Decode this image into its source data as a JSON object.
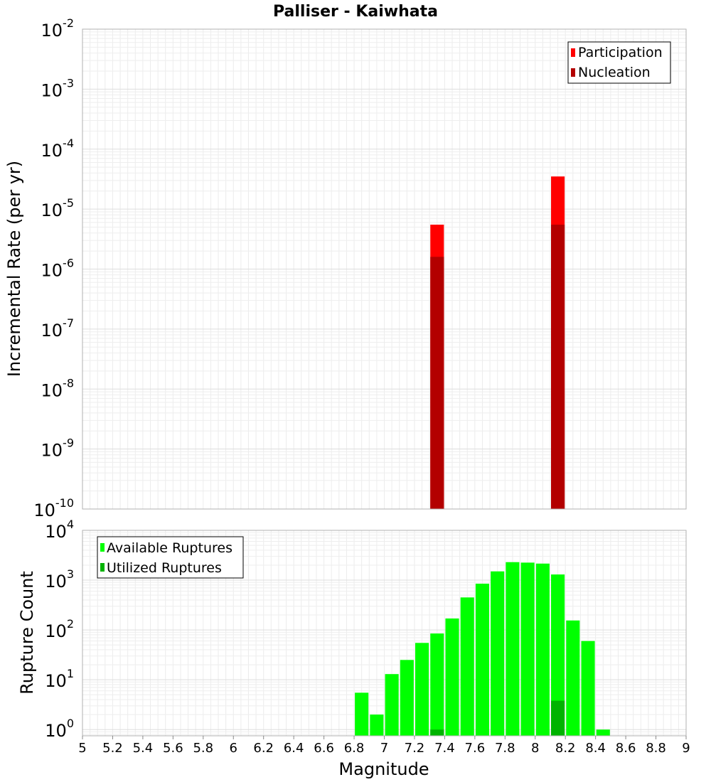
{
  "chart_data": [
    {
      "type": "bar",
      "title": "Palliser - Kaiwhata",
      "xlabel": "",
      "ylabel": "Incremental Rate (per yr)",
      "xlim": [
        5,
        9
      ],
      "ylim": [
        1e-10,
        0.01
      ],
      "yscale": "log",
      "grid": true,
      "legend_position": "top-right",
      "y_ticks": [
        {
          "base": "10",
          "exp": "-10",
          "value": 1e-10
        },
        {
          "base": "10",
          "exp": "-9",
          "value": 1e-09
        },
        {
          "base": "10",
          "exp": "-8",
          "value": 1e-08
        },
        {
          "base": "10",
          "exp": "-7",
          "value": 1e-07
        },
        {
          "base": "10",
          "exp": "-6",
          "value": 1e-06
        },
        {
          "base": "10",
          "exp": "-5",
          "value": 1e-05
        },
        {
          "base": "10",
          "exp": "-4",
          "value": 0.0001
        },
        {
          "base": "10",
          "exp": "-3",
          "value": 0.001
        },
        {
          "base": "10",
          "exp": "-2",
          "value": 0.01
        }
      ],
      "series": [
        {
          "name": "Participation",
          "color": "#ff0000",
          "x": [
            7.35,
            8.15
          ],
          "values": [
            5.5e-06,
            3.5e-05
          ]
        },
        {
          "name": "Nucleation",
          "color": "#b30000",
          "x": [
            7.35,
            8.15
          ],
          "values": [
            1.6e-06,
            5.5e-06
          ]
        }
      ]
    },
    {
      "type": "bar",
      "title": "",
      "xlabel": "Magnitude",
      "ylabel": "Rupture Count",
      "xlim": [
        5,
        9
      ],
      "ylim": [
        0.75,
        10000
      ],
      "yscale": "log",
      "grid": true,
      "legend_position": "top-left",
      "x_ticks": [
        "5",
        "5.2",
        "5.4",
        "5.6",
        "5.8",
        "6",
        "6.2",
        "6.4",
        "6.6",
        "6.8",
        "7",
        "7.2",
        "7.4",
        "7.6",
        "7.8",
        "8",
        "8.2",
        "8.4",
        "8.6",
        "8.8",
        "9"
      ],
      "y_ticks": [
        {
          "base": "10",
          "exp": "0",
          "value": 1
        },
        {
          "base": "10",
          "exp": "1",
          "value": 10
        },
        {
          "base": "10",
          "exp": "2",
          "value": 100
        },
        {
          "base": "10",
          "exp": "3",
          "value": 1000
        },
        {
          "base": "10",
          "exp": "4",
          "value": 10000
        }
      ],
      "series": [
        {
          "name": "Available Ruptures",
          "color": "#00ff00",
          "x": [
            6.85,
            6.95,
            7.05,
            7.15,
            7.25,
            7.35,
            7.45,
            7.55,
            7.65,
            7.75,
            7.85,
            7.95,
            8.05,
            8.15,
            8.25,
            8.35,
            8.45
          ],
          "values": [
            5.5,
            2,
            13,
            25,
            55,
            85,
            170,
            450,
            850,
            1500,
            2300,
            2250,
            2150,
            1300,
            155,
            60,
            1
          ]
        },
        {
          "name": "Utilized Ruptures",
          "color": "#00b300",
          "x": [
            7.35,
            8.15
          ],
          "values": [
            1,
            3.8
          ]
        }
      ]
    }
  ]
}
